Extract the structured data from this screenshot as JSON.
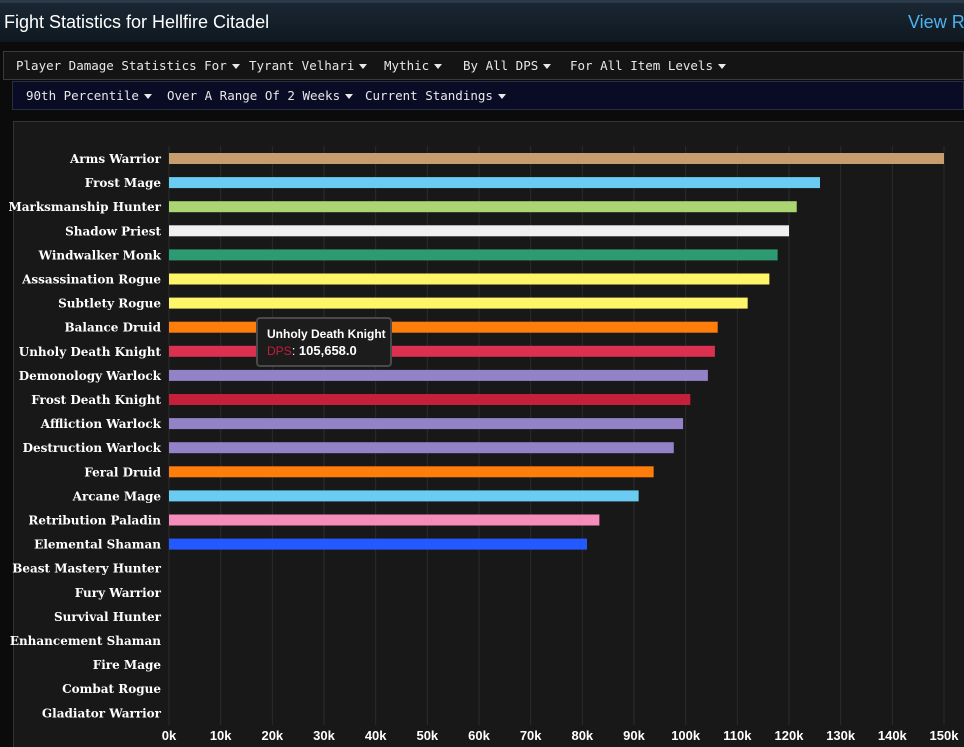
{
  "header": {
    "title": "Fight Statistics for Hellfire Citadel",
    "view_link": "View R"
  },
  "filters_row1": [
    "Player Damage Statistics For",
    "Tyrant Velhari",
    "Mythic",
    "By All DPS",
    "For All Item Levels"
  ],
  "filters_row2": [
    "90th Percentile",
    "Over A Range Of 2 Weeks",
    "Current Standings"
  ],
  "tooltip": {
    "name": "Unholy Death Knight",
    "label": "DPS",
    "value": "105,658.0"
  },
  "chart_data": {
    "type": "bar",
    "orientation": "horizontal",
    "xlim": [
      0,
      150000
    ],
    "x_ticks": [
      "0k",
      "10k",
      "20k",
      "30k",
      "40k",
      "50k",
      "60k",
      "70k",
      "80k",
      "90k",
      "100k",
      "110k",
      "120k",
      "130k",
      "140k",
      "150k"
    ],
    "grid": true,
    "categories": [
      "Arms Warrior",
      "Frost Mage",
      "Marksmanship Hunter",
      "Shadow Priest",
      "Windwalker Monk",
      "Assassination Rogue",
      "Subtlety Rogue",
      "Balance Druid",
      "Unholy Death Knight",
      "Demonology Warlock",
      "Frost Death Knight",
      "Affliction Warlock",
      "Destruction Warlock",
      "Feral Druid",
      "Arcane Mage",
      "Retribution Paladin",
      "Elemental Shaman",
      "Beast Mastery Hunter",
      "Fury Warrior",
      "Survival Hunter",
      "Enhancement Shaman",
      "Fire Mage",
      "Combat Rogue",
      "Gladiator Warrior"
    ],
    "values": [
      150000,
      126000,
      121500,
      120000,
      117800,
      116200,
      112000,
      106200,
      105658,
      104300,
      100900,
      99500,
      97700,
      93800,
      90900,
      83300,
      80900,
      0,
      0,
      0,
      0,
      0,
      0,
      0
    ],
    "colors": [
      "#c79c6e",
      "#69ccf0",
      "#abd473",
      "#f0f0f0",
      "#2e9a72",
      "#fff569",
      "#fff569",
      "#ff7d0a",
      "#dc3050",
      "#9482c9",
      "#c41f3b",
      "#9482c9",
      "#9482c9",
      "#ff7d0a",
      "#69ccf0",
      "#f58cba",
      "#2459ff",
      "#abd473",
      "#c79c6e",
      "#abd473",
      "#0070de",
      "#69ccf0",
      "#fff569",
      "#c79c6e"
    ]
  }
}
